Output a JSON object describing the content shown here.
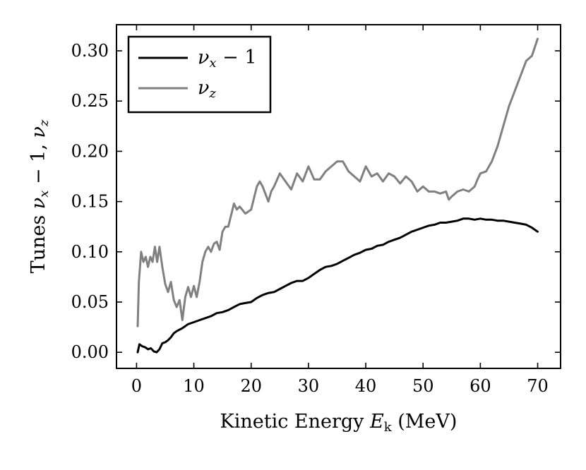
{
  "chart_data": {
    "type": "line",
    "title": "",
    "xlabel": "Kinetic Energy E_k (MeV)",
    "xlabel_parts": {
      "pre": "Kinetic Energy ",
      "sym": "E",
      "sub": "k",
      "post": " (MeV)"
    },
    "ylabel": "Tunes ν_x − 1, ν_z",
    "ylabel_parts": {
      "pre": "Tunes ",
      "nu": "ν",
      "subx": "x",
      "minus1": " − 1, ",
      "subz": "z"
    },
    "xlim": [
      -3.5,
      74
    ],
    "ylim": [
      -0.016,
      0.326
    ],
    "xticks": [
      0,
      10,
      20,
      30,
      40,
      50,
      60,
      70
    ],
    "xtick_labels": [
      "0",
      "10",
      "20",
      "30",
      "40",
      "50",
      "60",
      "70"
    ],
    "yticks": [
      0.0,
      0.05,
      0.1,
      0.15,
      0.2,
      0.25,
      0.3
    ],
    "ytick_labels": [
      "0.00",
      "0.05",
      "0.10",
      "0.15",
      "0.20",
      "0.25",
      "0.30"
    ],
    "grid": false,
    "legend_position": "top-left",
    "series": [
      {
        "name": "ν_x − 1",
        "legend_parts": {
          "nu": "ν",
          "sub": "x",
          "tail": " − 1"
        },
        "color": "#000000",
        "x": [
          0.2,
          0.5,
          1,
          1.5,
          2,
          2.5,
          3,
          3.5,
          4,
          4.5,
          5,
          5.5,
          6,
          6.5,
          7,
          8,
          9,
          10,
          11,
          12,
          13,
          14,
          15,
          16,
          17,
          18,
          19,
          20,
          21,
          22,
          23,
          24,
          25,
          26,
          27,
          28,
          29,
          30,
          31,
          32,
          33,
          34,
          35,
          36,
          37,
          38,
          39,
          40,
          41,
          42,
          43,
          44,
          45,
          46,
          47,
          48,
          49,
          50,
          51,
          52,
          53,
          54,
          55,
          56,
          57,
          58,
          59,
          60,
          61,
          62,
          63,
          64,
          65,
          66,
          67,
          68,
          69,
          70
        ],
        "y": [
          0.0,
          0.008,
          0.006,
          0.005,
          0.003,
          0.004,
          0.001,
          0.0,
          0.003,
          0.009,
          0.01,
          0.012,
          0.015,
          0.019,
          0.021,
          0.024,
          0.028,
          0.03,
          0.032,
          0.034,
          0.036,
          0.039,
          0.04,
          0.042,
          0.045,
          0.048,
          0.049,
          0.05,
          0.054,
          0.057,
          0.059,
          0.06,
          0.063,
          0.066,
          0.069,
          0.071,
          0.071,
          0.074,
          0.078,
          0.082,
          0.085,
          0.086,
          0.088,
          0.091,
          0.094,
          0.097,
          0.099,
          0.102,
          0.103,
          0.106,
          0.107,
          0.11,
          0.112,
          0.114,
          0.117,
          0.12,
          0.122,
          0.124,
          0.126,
          0.127,
          0.129,
          0.129,
          0.13,
          0.131,
          0.133,
          0.133,
          0.132,
          0.133,
          0.132,
          0.132,
          0.131,
          0.131,
          0.13,
          0.129,
          0.128,
          0.127,
          0.124,
          0.12
        ]
      },
      {
        "name": "ν_z",
        "legend_parts": {
          "nu": "ν",
          "sub": "z",
          "tail": ""
        },
        "color": "#808080",
        "x": [
          0.2,
          0.4,
          0.8,
          1.2,
          1.6,
          2.0,
          2.4,
          2.8,
          3.2,
          3.6,
          4.0,
          4.5,
          5.0,
          5.5,
          6.0,
          6.5,
          7.0,
          7.5,
          8.0,
          8.5,
          9.0,
          9.5,
          10,
          10.5,
          11,
          11.5,
          12,
          12.5,
          13,
          13.5,
          14,
          14.5,
          15,
          15.5,
          16,
          17,
          17.5,
          18,
          19,
          20,
          21,
          21.5,
          22,
          23,
          23.5,
          24,
          25,
          26,
          27,
          28,
          29,
          30,
          31,
          32,
          33,
          34,
          35,
          36,
          37,
          38,
          39,
          40,
          41,
          42,
          43,
          44,
          45,
          46,
          47,
          48,
          49,
          50,
          51,
          52,
          53,
          54,
          54.5,
          55,
          56,
          57,
          58,
          59,
          59.5,
          60,
          61,
          62,
          63,
          64,
          65,
          66,
          67,
          68,
          69,
          70
        ],
        "y": [
          0.026,
          0.07,
          0.1,
          0.09,
          0.095,
          0.085,
          0.095,
          0.09,
          0.105,
          0.09,
          0.105,
          0.085,
          0.068,
          0.06,
          0.07,
          0.052,
          0.045,
          0.052,
          0.032,
          0.055,
          0.065,
          0.055,
          0.066,
          0.055,
          0.07,
          0.09,
          0.1,
          0.105,
          0.1,
          0.108,
          0.11,
          0.102,
          0.12,
          0.125,
          0.125,
          0.148,
          0.142,
          0.145,
          0.138,
          0.142,
          0.165,
          0.17,
          0.165,
          0.15,
          0.16,
          0.165,
          0.178,
          0.17,
          0.162,
          0.178,
          0.17,
          0.185,
          0.172,
          0.172,
          0.18,
          0.185,
          0.19,
          0.19,
          0.18,
          0.175,
          0.17,
          0.185,
          0.175,
          0.178,
          0.17,
          0.178,
          0.175,
          0.168,
          0.175,
          0.17,
          0.16,
          0.165,
          0.16,
          0.16,
          0.158,
          0.16,
          0.152,
          0.155,
          0.16,
          0.162,
          0.16,
          0.165,
          0.172,
          0.178,
          0.18,
          0.19,
          0.205,
          0.225,
          0.245,
          0.26,
          0.275,
          0.29,
          0.295,
          0.312
        ]
      }
    ]
  }
}
